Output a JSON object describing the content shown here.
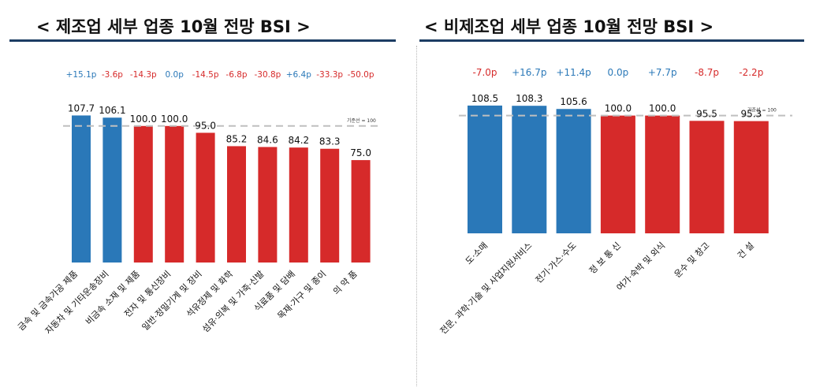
{
  "colors": {
    "increase": "#2a78b8",
    "decrease": "#d62a2a",
    "baseline": "#bfbfbf",
    "change_up": "#2a78b8",
    "change_down": "#d62a2a"
  },
  "chart_data": [
    {
      "type": "bar",
      "title": "< 제조업 세부 업종 10월 전망 BSI >",
      "reference_label": "기준선 = 100",
      "reference_value": 100,
      "ylim": [
        0,
        115
      ],
      "categories": [
        "금속 및 금속가공 제품",
        "자동차 및 기타운송장비",
        "비금속 소재 및 제품",
        "전자 및 통신장비",
        "일반·정밀기계 및 장비",
        "석유정제 및 화학",
        "섬유·의복 및 가죽·신발",
        "식료품 및 담배",
        "목재·가구 및 종이",
        "의 약 품"
      ],
      "values": [
        107.7,
        106.1,
        100.0,
        100.0,
        95.0,
        85.2,
        84.6,
        84.2,
        83.3,
        75.0
      ],
      "value_labels": [
        "107.7",
        "106.1",
        "100.0",
        "100.0",
        "95.0",
        "85.2",
        "84.6",
        "84.2",
        "83.3",
        "75.0"
      ],
      "changes": [
        "+15.1p",
        "-3.6p",
        "-14.3p",
        "0.0p",
        "-14.5p",
        "-6.8p",
        "-30.8p",
        "+6.4p",
        "-33.3p",
        "-50.0p"
      ],
      "bar_colors": [
        "increase",
        "increase",
        "decrease",
        "decrease",
        "decrease",
        "decrease",
        "decrease",
        "decrease",
        "decrease",
        "decrease"
      ],
      "change_colors": [
        "up",
        "down",
        "down",
        "up",
        "down",
        "down",
        "down",
        "up",
        "down",
        "down"
      ]
    },
    {
      "type": "bar",
      "title": "< 비제조업 세부 업종 10월 전망 BSI >",
      "reference_label": "기준선 = 100",
      "reference_value": 100,
      "ylim": [
        0,
        115
      ],
      "categories": [
        "도·소매",
        "전문, 과학·기술 및 사업지원서비스",
        "전기·가스·수도",
        "정 보 통 신",
        "여가·숙박 및 외식",
        "운수 및 창고",
        "건 설"
      ],
      "values": [
        108.5,
        108.3,
        105.6,
        100.0,
        100.0,
        95.5,
        95.3
      ],
      "value_labels": [
        "108.5",
        "108.3",
        "105.6",
        "100.0",
        "100.0",
        "95.5",
        "95.3"
      ],
      "changes": [
        "-7.0p",
        "+16.7p",
        "+11.4p",
        "0.0p",
        "+7.7p",
        "-8.7p",
        "-2.2p"
      ],
      "bar_colors": [
        "increase",
        "increase",
        "increase",
        "decrease",
        "decrease",
        "decrease",
        "decrease"
      ],
      "change_colors": [
        "down",
        "up",
        "up",
        "up",
        "up",
        "down",
        "down"
      ]
    }
  ]
}
